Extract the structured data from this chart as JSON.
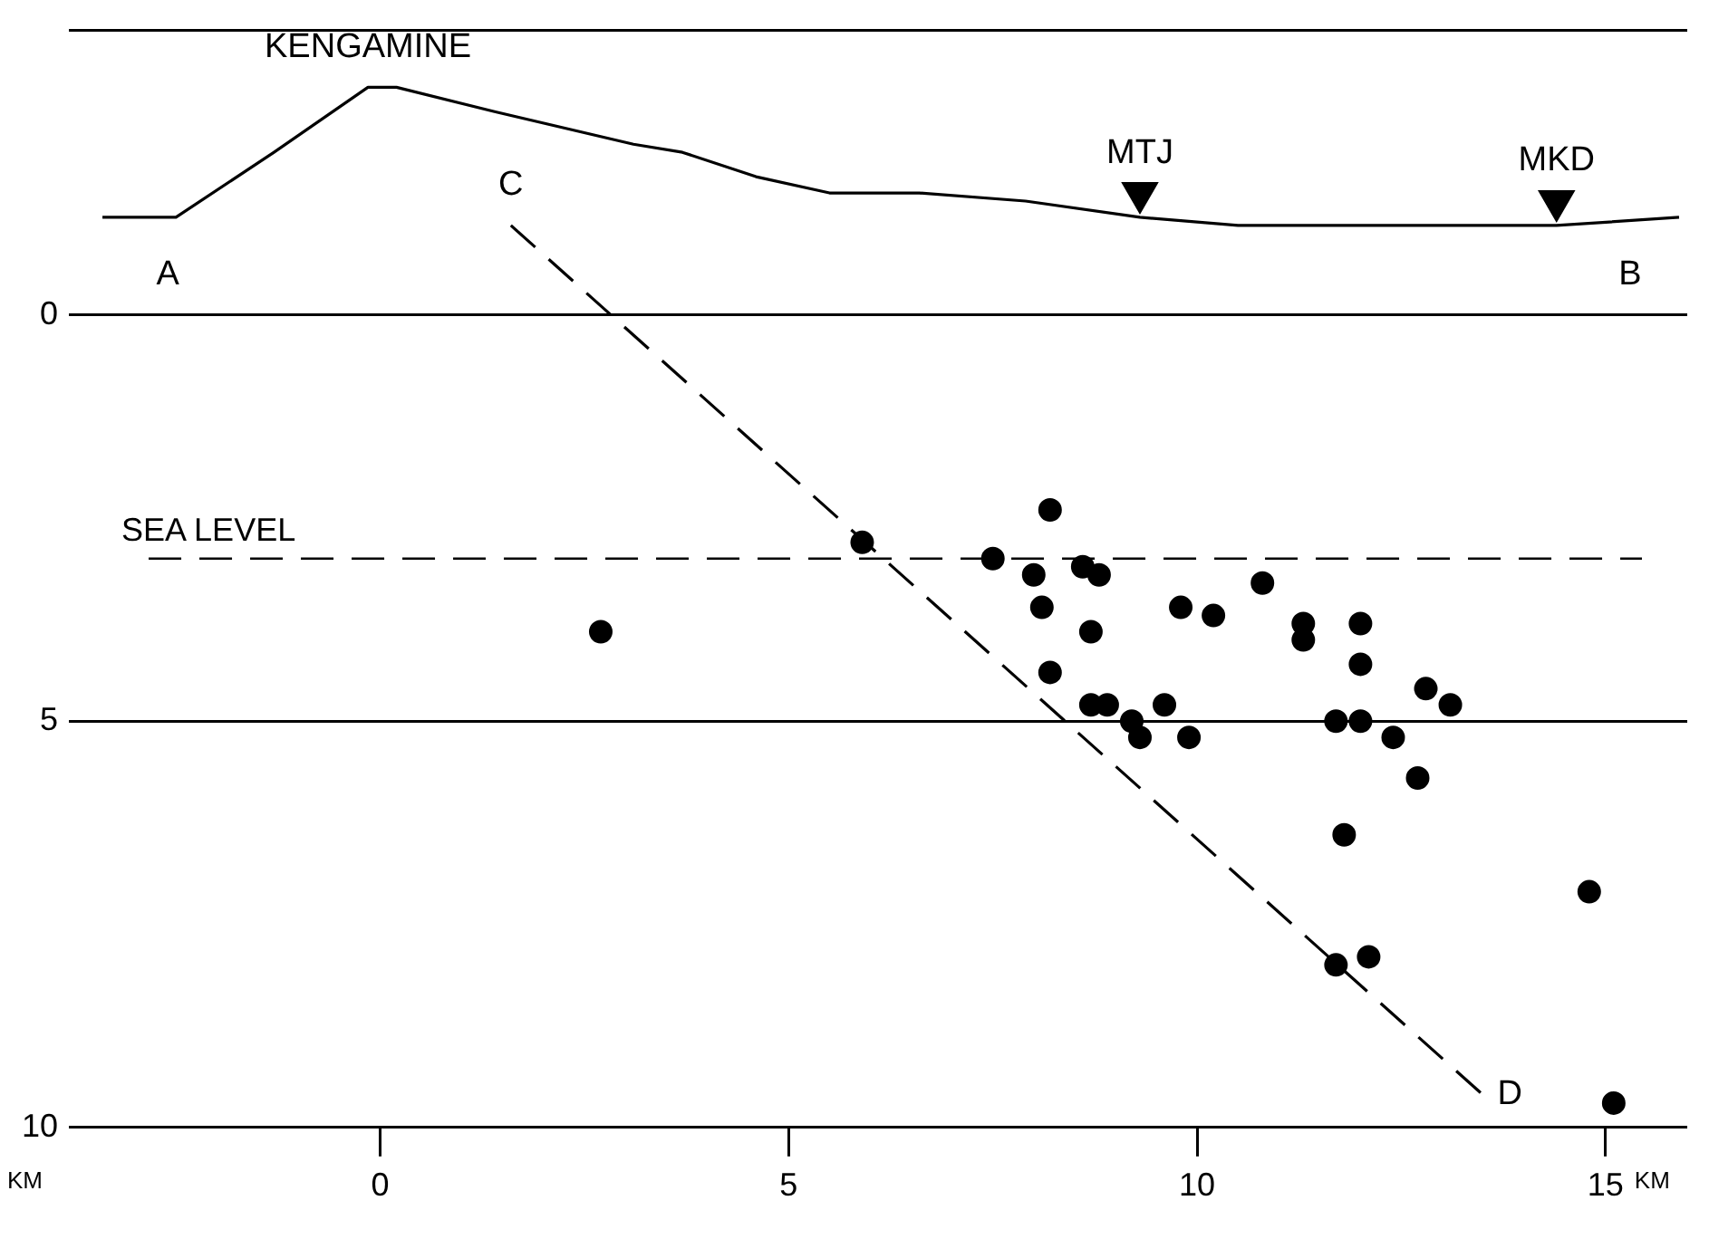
{
  "chart_data": {
    "type": "scatter",
    "xlabel": "KM",
    "ylabel": "KM",
    "xlim": [
      -3.5,
      16
    ],
    "ylim": [
      10,
      -3.5
    ],
    "xticks": [
      0,
      5,
      10,
      15
    ],
    "yticks": [
      {
        "value": -3.5,
        "label": null
      },
      0,
      5,
      10
    ],
    "grid": "y",
    "legend": false,
    "ref_lines": [
      {
        "axis": "y",
        "value": 0,
        "line_style": "solid",
        "color": "#000000"
      },
      {
        "axis": "y",
        "value": 3,
        "label": "SEA LEVEL",
        "line_style": "dashed",
        "color": "#000000"
      }
    ],
    "annotations": [
      {
        "text": "KENGAMINE",
        "x": -0.15,
        "y": -2.8
      },
      {
        "text": "MTJ",
        "x": 9.3,
        "y": -1.5
      },
      {
        "text": "MKD",
        "x": 14.4,
        "y": -1.4
      },
      {
        "text": "A",
        "x": -2.6,
        "y": 0
      },
      {
        "text": "B",
        "x": 15.3,
        "y": 0
      },
      {
        "text": "C",
        "x": 1.6,
        "y": -1.1
      },
      {
        "text": "D",
        "x": 13.5,
        "y": 9.6
      }
    ],
    "series": [
      {
        "type": "line",
        "color": "#000000",
        "marker": "none",
        "line_style": "solid",
        "x": [
          -3.4,
          -2.5,
          -1.3,
          -0.15,
          0.2,
          1.4,
          3.1,
          3.7,
          4.6,
          5.5,
          6.6,
          7.9,
          9.3,
          10.5,
          12.5,
          14.4,
          15.9
        ],
        "values": [
          -1.2,
          -1.2,
          -2.0,
          -2.8,
          -2.8,
          -2.5,
          -2.1,
          -2.0,
          -1.7,
          -1.5,
          -1.5,
          -1.4,
          -1.2,
          -1.1,
          -1.1,
          -1.1,
          -1.2
        ]
      },
      {
        "type": "line",
        "color": "#000000",
        "marker": "none",
        "line_style": "dashed",
        "x": [
          1.6,
          13.5
        ],
        "values": [
          -1.1,
          9.6
        ]
      },
      {
        "type": "scatter",
        "color": "#000000",
        "marker": "triangle",
        "x": [
          9.3,
          14.4
        ],
        "values": [
          -1.5,
          -1.4
        ]
      },
      {
        "type": "scatter",
        "color": "#000000",
        "marker": "circle",
        "x": [
          2.7,
          5.9,
          8.2,
          7.5,
          8.0,
          8.6,
          8.8,
          8.1,
          8.7,
          8.2,
          9.8,
          10.2,
          10.8,
          11.3,
          11.3,
          12.0,
          12.0,
          8.7,
          8.9,
          9.6,
          9.2,
          9.3,
          9.9,
          11.7,
          12.0,
          12.4,
          12.8,
          13.1,
          12.7,
          11.8,
          14.8,
          11.7,
          12.1,
          15.1
        ],
        "values": [
          3.9,
          2.8,
          2.4,
          3.0,
          3.2,
          3.1,
          3.2,
          3.6,
          3.9,
          4.4,
          3.6,
          3.7,
          3.3,
          3.8,
          4.0,
          3.8,
          4.3,
          4.8,
          4.8,
          4.8,
          5.0,
          5.2,
          5.2,
          5.0,
          5.0,
          5.2,
          4.6,
          4.8,
          5.7,
          6.4,
          7.1,
          8.0,
          7.9,
          9.7
        ]
      }
    ]
  }
}
